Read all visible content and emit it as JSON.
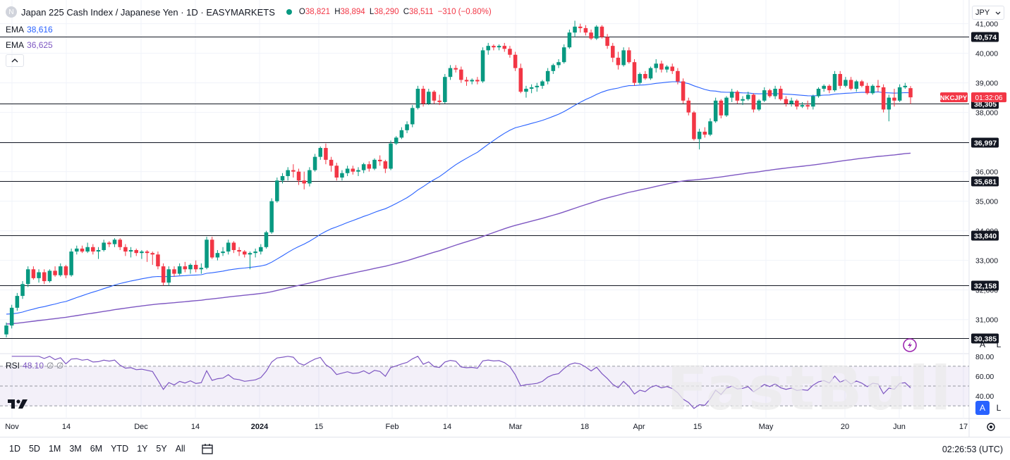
{
  "header": {
    "title": "Japan 225 Cash Index / Japanese Yen · 1D · EASYMARKETS",
    "logo_letter": "N",
    "ohlc": {
      "o_label": "O",
      "o": "38,821",
      "h_label": "H",
      "h": "38,894",
      "l_label": "L",
      "l": "38,290",
      "c_label": "C",
      "c": "38,511",
      "change": "−310 (−0.80%)"
    }
  },
  "indicators": {
    "ema1_label": "EMA",
    "ema1_value": "38,616",
    "ema2_label": "EMA",
    "ema2_value": "36,625",
    "rsi_label": "RSI",
    "rsi_value": "48.10",
    "rsi_extra": "∅ ∅"
  },
  "currency": "JPY",
  "symbol_tag": {
    "name": "NKCJPY",
    "countdown": "01:32:06"
  },
  "watermark": "FastBull",
  "bottom_bar": {
    "timeframes": [
      "1D",
      "5D",
      "1M",
      "3M",
      "6M",
      "YTD",
      "1Y",
      "5Y",
      "All"
    ],
    "time": "02:26:53 (UTC)"
  },
  "buttons": {
    "auto": "A",
    "log": "L"
  },
  "colors": {
    "up": "#089981",
    "down": "#f23645",
    "ema_fast": "#2962ff",
    "ema_slow": "#7e57c2",
    "level": "#131722",
    "rsi": "#7e57c2"
  },
  "chart_data": {
    "type": "candlestick",
    "y_axis": {
      "ylim": [
        29850,
        41800
      ],
      "ticks": [
        31000,
        32000,
        33000,
        34000,
        35000,
        36000,
        37000,
        38000,
        39000,
        40000,
        41000
      ],
      "tick_labels": [
        "31,000",
        "32,000",
        "33,000",
        "34,000",
        "35,000",
        "36,000",
        "37,000",
        "38,000",
        "39,000",
        "40,000",
        "41,000"
      ]
    },
    "x_axis": {
      "labels": [
        "Nov",
        "14",
        "Dec",
        "14",
        "2024",
        "15",
        "Feb",
        "14",
        "Mar",
        "18",
        "Apr",
        "15",
        "May",
        "20",
        "Jun",
        "17"
      ]
    },
    "levels": [
      {
        "value": 40574,
        "label": "40,574"
      },
      {
        "value": 38305,
        "label": "38,305"
      },
      {
        "value": 36997,
        "label": "36,997"
      },
      {
        "value": 35681,
        "label": "35,681"
      },
      {
        "value": 33840,
        "label": "33,840"
      },
      {
        "value": 32158,
        "label": "32,158"
      },
      {
        "value": 30385,
        "label": "30,385"
      }
    ],
    "last_price": 38511,
    "candles": [
      [
        30500,
        30900,
        30400,
        30800
      ],
      [
        30800,
        31500,
        30700,
        31400
      ],
      [
        31400,
        31900,
        31300,
        31800
      ],
      [
        31800,
        32300,
        31700,
        32200
      ],
      [
        32200,
        32800,
        32100,
        32700
      ],
      [
        32700,
        32800,
        32350,
        32400
      ],
      [
        32400,
        32700,
        32250,
        32600
      ],
      [
        32600,
        32700,
        32200,
        32300
      ],
      [
        32300,
        32700,
        32250,
        32650
      ],
      [
        32650,
        32800,
        32450,
        32500
      ],
      [
        32500,
        32900,
        32450,
        32800
      ],
      [
        32800,
        32850,
        32400,
        32500
      ],
      [
        32500,
        33400,
        32450,
        33300
      ],
      [
        33300,
        33500,
        33200,
        33400
      ],
      [
        33400,
        33500,
        33250,
        33300
      ],
      [
        33300,
        33600,
        33250,
        33450
      ],
      [
        33450,
        33550,
        33200,
        33300
      ],
      [
        33300,
        33450,
        33050,
        33350
      ],
      [
        33350,
        33700,
        33300,
        33600
      ],
      [
        33600,
        33650,
        33450,
        33550
      ],
      [
        33550,
        33750,
        33450,
        33700
      ],
      [
        33700,
        33750,
        33350,
        33450
      ],
      [
        33450,
        33550,
        33150,
        33300
      ],
      [
        33300,
        33450,
        33100,
        33350
      ],
      [
        33350,
        33400,
        33150,
        33250
      ],
      [
        33250,
        33350,
        33050,
        33300
      ],
      [
        33300,
        33350,
        32950,
        33250
      ],
      [
        33250,
        33300,
        32850,
        33200
      ],
      [
        33200,
        33300,
        32700,
        32800
      ],
      [
        32800,
        32900,
        32150,
        32250
      ],
      [
        32250,
        32800,
        32150,
        32700
      ],
      [
        32700,
        32800,
        32450,
        32550
      ],
      [
        32550,
        32900,
        32500,
        32800
      ],
      [
        32800,
        32950,
        32600,
        32700
      ],
      [
        32700,
        32900,
        32550,
        32850
      ],
      [
        32850,
        33000,
        32600,
        32700
      ],
      [
        32700,
        32900,
        32550,
        32750
      ],
      [
        32750,
        33800,
        32700,
        33700
      ],
      [
        33700,
        33800,
        33050,
        33100
      ],
      [
        33100,
        33350,
        33000,
        33250
      ],
      [
        33250,
        33450,
        33150,
        33300
      ],
      [
        33300,
        33700,
        33200,
        33600
      ],
      [
        33600,
        33650,
        33250,
        33350
      ],
      [
        33350,
        33450,
        33150,
        33300
      ],
      [
        33300,
        33350,
        33100,
        33200
      ],
      [
        33200,
        33300,
        32700,
        33250
      ],
      [
        33250,
        33400,
        33100,
        33300
      ],
      [
        33300,
        33550,
        33200,
        33450
      ],
      [
        33450,
        34000,
        33400,
        33950
      ],
      [
        33950,
        35100,
        33900,
        35000
      ],
      [
        35000,
        35800,
        34950,
        35700
      ],
      [
        35700,
        35950,
        35600,
        35850
      ],
      [
        35850,
        36150,
        35700,
        36050
      ],
      [
        36050,
        36250,
        35800,
        36000
      ],
      [
        36000,
        36100,
        35550,
        35700
      ],
      [
        35700,
        36000,
        35400,
        35600
      ],
      [
        35600,
        36150,
        35500,
        36050
      ],
      [
        36050,
        36600,
        36000,
        36500
      ],
      [
        36500,
        36850,
        36400,
        36800
      ],
      [
        36800,
        36950,
        36250,
        36400
      ],
      [
        36400,
        36500,
        36000,
        36200
      ],
      [
        36200,
        36300,
        35700,
        35800
      ],
      [
        35800,
        36050,
        35700,
        35950
      ],
      [
        35950,
        36200,
        35850,
        36100
      ],
      [
        36100,
        36200,
        35900,
        36000
      ],
      [
        36000,
        36150,
        35850,
        36050
      ],
      [
        36050,
        36300,
        35950,
        36250
      ],
      [
        36250,
        36350,
        36000,
        36100
      ],
      [
        36100,
        36450,
        36050,
        36400
      ],
      [
        36400,
        36550,
        36200,
        36350
      ],
      [
        36350,
        36400,
        35950,
        36100
      ],
      [
        36100,
        37050,
        36050,
        36950
      ],
      [
        36950,
        37200,
        36900,
        37150
      ],
      [
        37150,
        37500,
        37100,
        37400
      ],
      [
        37400,
        37700,
        37300,
        37600
      ],
      [
        37600,
        38250,
        37500,
        38150
      ],
      [
        38150,
        38900,
        38100,
        38800
      ],
      [
        38800,
        38900,
        38200,
        38300
      ],
      [
        38300,
        38800,
        38250,
        38700
      ],
      [
        38700,
        38750,
        38300,
        38400
      ],
      [
        38400,
        38600,
        38250,
        38350
      ],
      [
        38350,
        39300,
        38300,
        39200
      ],
      [
        39200,
        39600,
        39100,
        39500
      ],
      [
        39500,
        39600,
        39350,
        39450
      ],
      [
        39450,
        39550,
        39000,
        39100
      ],
      [
        39100,
        39200,
        38900,
        39050
      ],
      [
        39050,
        39150,
        38950,
        39100
      ],
      [
        39100,
        39200,
        38950,
        39050
      ],
      [
        39050,
        40200,
        39000,
        40100
      ],
      [
        40100,
        40350,
        39950,
        40250
      ],
      [
        40250,
        40300,
        40100,
        40200
      ],
      [
        40200,
        40300,
        40100,
        40250
      ],
      [
        40250,
        40350,
        40050,
        40150
      ],
      [
        40150,
        40250,
        39850,
        39950
      ],
      [
        39950,
        40050,
        39400,
        39500
      ],
      [
        39500,
        39650,
        38650,
        38700
      ],
      [
        38700,
        38900,
        38500,
        38800
      ],
      [
        38800,
        38950,
        38650,
        38850
      ],
      [
        38850,
        39000,
        38700,
        38900
      ],
      [
        38900,
        39100,
        38800,
        39050
      ],
      [
        39050,
        39500,
        38950,
        39400
      ],
      [
        39400,
        39650,
        39300,
        39600
      ],
      [
        39600,
        39800,
        39500,
        39700
      ],
      [
        39700,
        40300,
        39650,
        40200
      ],
      [
        40200,
        40800,
        40150,
        40700
      ],
      [
        40700,
        41100,
        40550,
        40900
      ],
      [
        40900,
        41000,
        40700,
        40850
      ],
      [
        40850,
        40950,
        40600,
        40700
      ],
      [
        40700,
        40800,
        40450,
        40500
      ],
      [
        40500,
        40950,
        40450,
        40900
      ],
      [
        40900,
        40950,
        40500,
        40550
      ],
      [
        40550,
        40650,
        40150,
        40250
      ],
      [
        40250,
        40350,
        39700,
        39850
      ],
      [
        39850,
        40050,
        39450,
        39600
      ],
      [
        39600,
        40200,
        39550,
        40100
      ],
      [
        40100,
        40200,
        39650,
        39700
      ],
      [
        39700,
        39800,
        38900,
        39000
      ],
      [
        39000,
        39350,
        38950,
        39300
      ],
      [
        39300,
        39400,
        39100,
        39150
      ],
      [
        39150,
        39550,
        39100,
        39500
      ],
      [
        39500,
        39800,
        39350,
        39650
      ],
      [
        39650,
        39750,
        39350,
        39450
      ],
      [
        39450,
        39600,
        39350,
        39550
      ],
      [
        39550,
        39650,
        39300,
        39400
      ],
      [
        39400,
        39500,
        38950,
        39050
      ],
      [
        39050,
        39150,
        38300,
        38400
      ],
      [
        38400,
        38500,
        37900,
        38000
      ],
      [
        38000,
        38050,
        37050,
        37100
      ],
      [
        37100,
        37450,
        36750,
        37350
      ],
      [
        37350,
        37500,
        37150,
        37250
      ],
      [
        37250,
        37800,
        37200,
        37700
      ],
      [
        37700,
        38500,
        37650,
        38400
      ],
      [
        38400,
        38450,
        37800,
        37900
      ],
      [
        37900,
        38550,
        37850,
        38500
      ],
      [
        38500,
        38800,
        38350,
        38700
      ],
      [
        38700,
        38750,
        38300,
        38400
      ],
      [
        38400,
        38550,
        38250,
        38450
      ],
      [
        38450,
        38700,
        38400,
        38600
      ],
      [
        38600,
        38650,
        38000,
        38100
      ],
      [
        38100,
        38450,
        38050,
        38400
      ],
      [
        38400,
        38850,
        38350,
        38750
      ],
      [
        38750,
        38800,
        38500,
        38550
      ],
      [
        38550,
        38900,
        38450,
        38800
      ],
      [
        38800,
        38900,
        38400,
        38450
      ],
      [
        38450,
        38550,
        38200,
        38300
      ],
      [
        38300,
        38500,
        38200,
        38400
      ],
      [
        38400,
        38450,
        38100,
        38200
      ],
      [
        38200,
        38350,
        38150,
        38250
      ],
      [
        38250,
        38400,
        38100,
        38200
      ],
      [
        38200,
        38600,
        38100,
        38550
      ],
      [
        38550,
        38850,
        38500,
        38800
      ],
      [
        38800,
        38950,
        38700,
        38900
      ],
      [
        38900,
        38950,
        38650,
        38750
      ],
      [
        38750,
        39400,
        38700,
        39300
      ],
      [
        39300,
        39400,
        38800,
        38900
      ],
      [
        38900,
        39200,
        38850,
        39100
      ],
      [
        39100,
        39200,
        38750,
        38800
      ],
      [
        38800,
        39100,
        38700,
        39050
      ],
      [
        39050,
        39100,
        38850,
        38900
      ],
      [
        38900,
        39000,
        38600,
        38650
      ],
      [
        38650,
        38950,
        38600,
        38900
      ],
      [
        38900,
        39100,
        38700,
        38850
      ],
      [
        38850,
        38950,
        38000,
        38100
      ],
      [
        38100,
        38600,
        37700,
        38500
      ],
      [
        38500,
        38800,
        38200,
        38400
      ],
      [
        38400,
        38950,
        38350,
        38850
      ],
      [
        38850,
        39000,
        38800,
        38900
      ],
      [
        38821,
        38894,
        38290,
        38511
      ]
    ],
    "ema_fast": {
      "name": "EMA",
      "last": 38616
    },
    "ema_slow": {
      "name": "EMA",
      "last": 36625
    },
    "rsi": {
      "name": "RSI",
      "last": 48.1,
      "ylim": [
        18,
        82
      ],
      "ticks": [
        40,
        60,
        80
      ],
      "tick_labels": [
        "40.00",
        "60.00",
        "80.00"
      ],
      "bands": [
        30,
        70
      ]
    }
  }
}
